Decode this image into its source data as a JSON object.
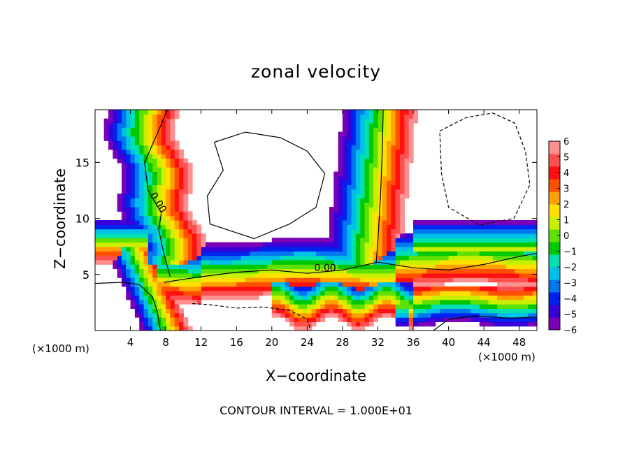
{
  "chart_data": {
    "type": "heatmap",
    "title": "zonal velocity",
    "xlabel": "X−coordinate",
    "ylabel": "Z−coordinate",
    "x_unit": "(×1000 m)",
    "xlim": [
      0,
      50
    ],
    "ylim": [
      0,
      19.7
    ],
    "x_ticks": [
      4,
      8,
      12,
      16,
      20,
      24,
      28,
      32,
      36,
      40,
      44,
      48
    ],
    "y_ticks": [
      5,
      10,
      15
    ],
    "colorbar": {
      "ticks": [
        "6",
        "5",
        "4",
        "3",
        "2",
        "1",
        "0",
        "−1",
        "−2",
        "−3",
        "−4",
        "−5",
        "−6"
      ],
      "range": [
        -6,
        6
      ],
      "colors": [
        "#7a00b8",
        "#3a00d8",
        "#0022ee",
        "#0077f0",
        "#00bfe8",
        "#00e0b0",
        "#00c800",
        "#5ee000",
        "#c8f000",
        "#ffe000",
        "#ffa000",
        "#ff5000",
        "#ff1010",
        "#ff5050",
        "#ff9090"
      ]
    },
    "contour_labels": [
      "0.00",
      "0.00"
    ],
    "footer": "CONTOUR INTERVAL = 1.000E+01"
  }
}
